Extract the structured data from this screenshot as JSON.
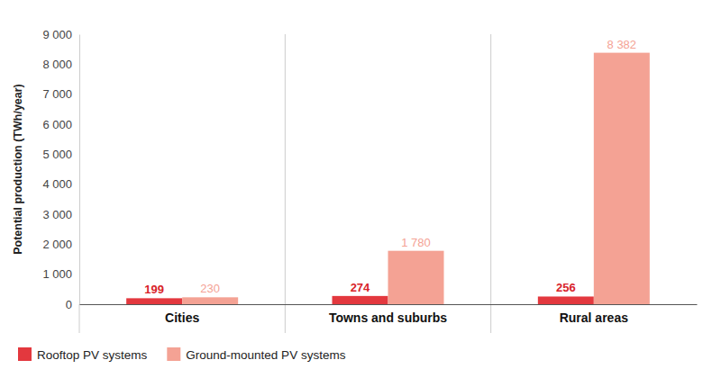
{
  "chart_data": {
    "type": "bar",
    "y_label": "Potential production (TWh/year)",
    "categories": [
      "Cities",
      "Towns and suburbs",
      "Rural areas"
    ],
    "series": [
      {
        "name": "Rooftop PV systems",
        "color": "#e3383e",
        "values": [
          199,
          274,
          256
        ]
      },
      {
        "name": "Ground-mounted PV systems",
        "color": "#f4a294",
        "values": [
          230,
          1780,
          8382
        ],
        "value_labels": [
          "230",
          "1 780",
          "8 382"
        ]
      }
    ],
    "ylim": [
      0,
      9000
    ],
    "yticks": [
      0,
      {
        "value": 1000,
        "label": "1 000"
      },
      {
        "value": 2000,
        "label": "2 000"
      },
      {
        "value": 3000,
        "label": "3 000"
      },
      {
        "value": 4000,
        "label": "4 000"
      },
      {
        "value": 5000,
        "label": "5 000"
      },
      {
        "value": 6000,
        "label": "6 000"
      },
      {
        "value": 7000,
        "label": "7 000"
      },
      {
        "value": 8000,
        "label": "8 000"
      },
      {
        "value": 9000,
        "label": "9 000"
      }
    ],
    "data_labels": true,
    "legend": "bottom-left"
  }
}
